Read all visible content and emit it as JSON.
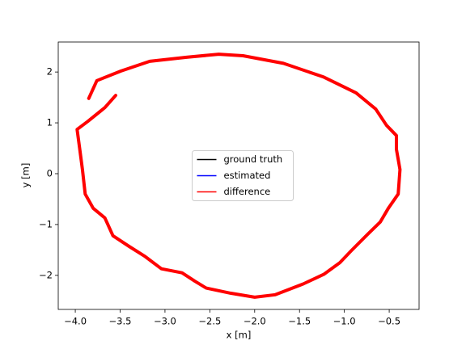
{
  "chart_data": {
    "type": "line",
    "xlabel": "x [m]",
    "ylabel": "y [m]",
    "xlim": [
      -4.19,
      -0.167
    ],
    "ylim": [
      -2.67,
      2.59
    ],
    "xticks": [
      {
        "value": -4.0,
        "label": "−4.0"
      },
      {
        "value": -3.5,
        "label": "−3.5"
      },
      {
        "value": -3.0,
        "label": "−3.0"
      },
      {
        "value": -2.5,
        "label": "−2.5"
      },
      {
        "value": -2.0,
        "label": "−2.0"
      },
      {
        "value": -1.5,
        "label": "−1.5"
      },
      {
        "value": -1.0,
        "label": "−1.0"
      },
      {
        "value": -0.5,
        "label": "−0.5"
      }
    ],
    "yticks": [
      {
        "value": -2,
        "label": "−2"
      },
      {
        "value": -1,
        "label": "−1"
      },
      0,
      1,
      2
    ],
    "legend": "center",
    "x": [
      -3.85,
      -3.76,
      -3.49,
      -3.17,
      -2.76,
      -2.4,
      -2.13,
      -1.68,
      -1.23,
      -0.87,
      -0.65,
      -0.53,
      -0.42,
      -0.42,
      -0.38,
      -0.4,
      -0.51,
      -0.6,
      -0.74,
      -0.92,
      -1.05,
      -1.23,
      -1.46,
      -1.77,
      -2.0,
      -2.27,
      -2.54,
      -2.67,
      -2.81,
      -3.04,
      -3.22,
      -3.4,
      -3.58,
      -3.67,
      -3.8,
      -3.89,
      -3.92,
      -3.95,
      -3.98,
      -3.86,
      -3.67,
      -3.55
    ],
    "series": [
      {
        "name": "ground truth",
        "color": "#000000",
        "values": [
          1.48,
          1.83,
          2.02,
          2.21,
          2.29,
          2.35,
          2.32,
          2.17,
          1.9,
          1.59,
          1.27,
          0.95,
          0.75,
          0.48,
          0.08,
          -0.4,
          -0.68,
          -0.95,
          -1.19,
          -1.51,
          -1.75,
          -1.98,
          -2.17,
          -2.38,
          -2.43,
          -2.35,
          -2.25,
          -2.11,
          -1.95,
          -1.87,
          -1.63,
          -1.43,
          -1.22,
          -0.87,
          -0.68,
          -0.4,
          0.08,
          0.48,
          0.87,
          1.03,
          1.3,
          1.54
        ]
      },
      {
        "name": "estimated",
        "color": "#0000ff",
        "values": [
          1.48,
          1.83,
          2.02,
          2.21,
          2.29,
          2.35,
          2.32,
          2.17,
          1.9,
          1.59,
          1.27,
          0.95,
          0.75,
          0.48,
          0.08,
          -0.4,
          -0.68,
          -0.95,
          -1.19,
          -1.51,
          -1.75,
          -1.98,
          -2.17,
          -2.38,
          -2.43,
          -2.35,
          -2.25,
          -2.11,
          -1.95,
          -1.87,
          -1.63,
          -1.43,
          -1.22,
          -0.87,
          -0.68,
          -0.4,
          0.08,
          0.48,
          0.87,
          1.03,
          1.3,
          1.54
        ]
      },
      {
        "name": "difference",
        "color": "#ff0000",
        "values": [
          1.48,
          1.83,
          2.02,
          2.21,
          2.29,
          2.35,
          2.32,
          2.17,
          1.9,
          1.59,
          1.27,
          0.95,
          0.75,
          0.48,
          0.08,
          -0.4,
          -0.68,
          -0.95,
          -1.19,
          -1.51,
          -1.75,
          -1.98,
          -2.17,
          -2.38,
          -2.43,
          -2.35,
          -2.25,
          -2.11,
          -1.95,
          -1.87,
          -1.63,
          -1.43,
          -1.22,
          -0.87,
          -0.68,
          -0.4,
          0.08,
          0.48,
          0.87,
          1.03,
          1.3,
          1.54
        ]
      }
    ]
  }
}
